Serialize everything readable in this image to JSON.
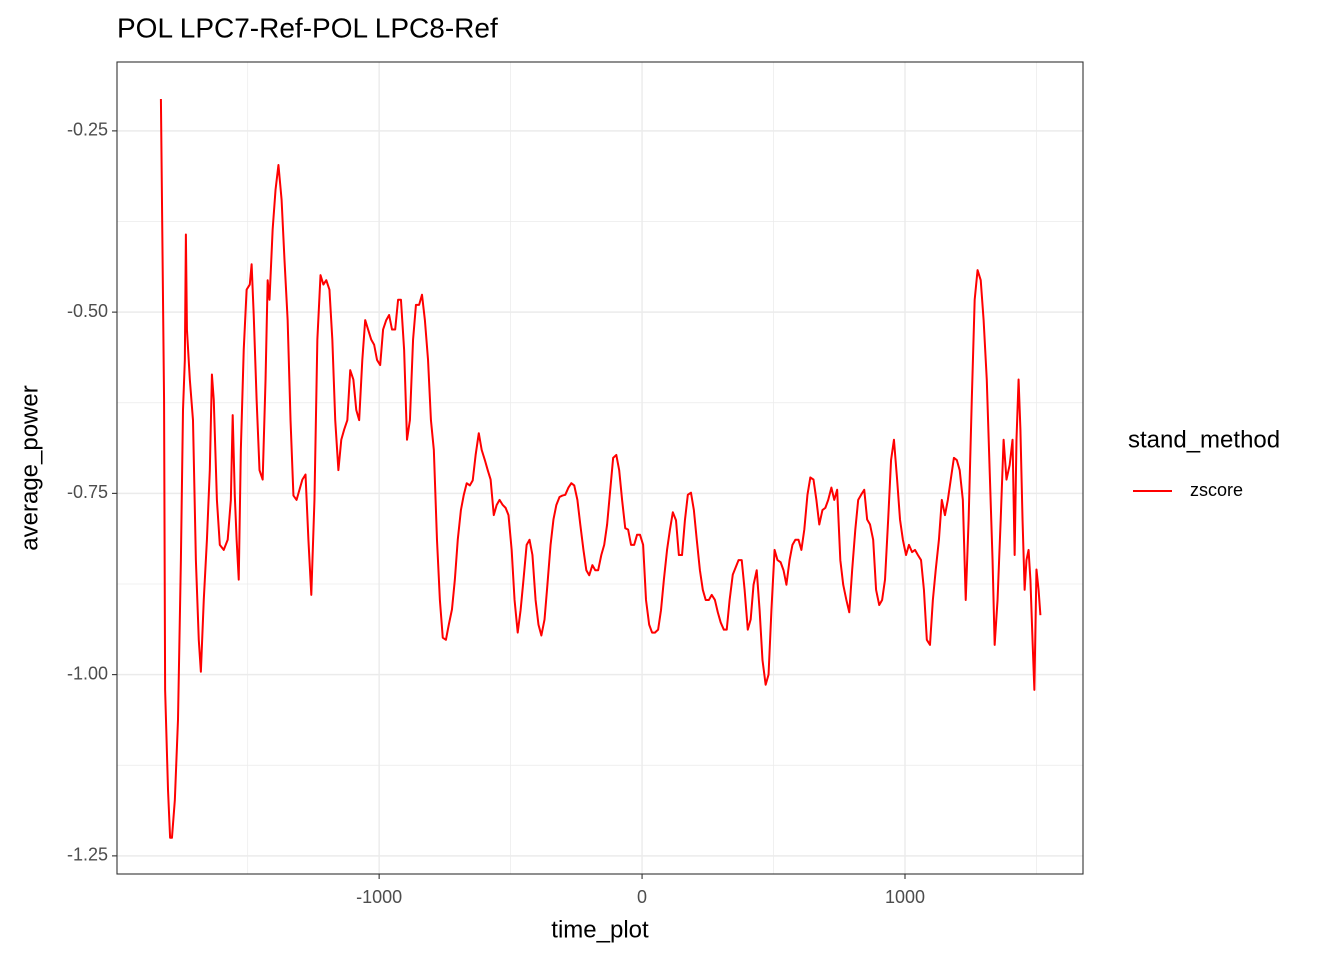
{
  "chart_data": {
    "type": "line",
    "title": "POL LPC7-Ref-POL LPC8-Ref",
    "x_label": "time_plot",
    "y_label": "average_power",
    "legend_title": "stand_method",
    "xlim": [
      -1997,
      1677
    ],
    "ylim": [
      -1.275,
      -0.155
    ],
    "xticks": [
      -1000,
      0,
      1000
    ],
    "yticks": [
      -1.25,
      {
        "value": -1.0,
        "label": "-1.00"
      },
      -0.75,
      {
        "value": -0.5,
        "label": "-0.50"
      },
      -0.25
    ],
    "xminor": [
      -1500,
      -500,
      500,
      1500
    ],
    "yminor": [
      -1.125,
      -0.875,
      -0.625,
      -0.375
    ],
    "grid": true,
    "legend": "right",
    "x": [
      -1830,
      -1818,
      -1814,
      -1803,
      -1795,
      -1788,
      -1777,
      -1765,
      -1754,
      -1746,
      -1739,
      -1735,
      -1731,
      -1720,
      -1708,
      -1697,
      -1686,
      -1678,
      -1667,
      -1655,
      -1644,
      -1636,
      -1629,
      -1617,
      -1606,
      -1591,
      -1576,
      -1564,
      -1557,
      -1549,
      -1542,
      -1534,
      -1526,
      -1515,
      -1504,
      -1492,
      -1485,
      -1477,
      -1466,
      -1455,
      -1443,
      -1432,
      -1424,
      -1417,
      -1405,
      -1394,
      -1383,
      -1371,
      -1360,
      -1348,
      -1337,
      -1326,
      -1314,
      -1303,
      -1292,
      -1280,
      -1269,
      -1258,
      -1246,
      -1235,
      -1223,
      -1212,
      -1201,
      -1189,
      -1178,
      -1167,
      -1155,
      -1144,
      -1133,
      -1121,
      -1110,
      -1098,
      -1087,
      -1076,
      -1064,
      -1053,
      -1042,
      -1030,
      -1019,
      -1008,
      -996,
      -985,
      -973,
      -962,
      -951,
      -939,
      -928,
      -917,
      -905,
      -894,
      -883,
      -871,
      -860,
      -848,
      -837,
      -826,
      -814,
      -803,
      -792,
      -780,
      -769,
      -758,
      -746,
      -735,
      -723,
      -712,
      -701,
      -689,
      -678,
      -667,
      -655,
      -644,
      -633,
      -621,
      -610,
      -598,
      -587,
      -576,
      -564,
      -553,
      -542,
      -530,
      -519,
      -508,
      -496,
      -485,
      -473,
      -462,
      -451,
      -439,
      -428,
      -417,
      -405,
      -394,
      -383,
      -371,
      -360,
      -348,
      -337,
      -326,
      -314,
      -303,
      -292,
      -280,
      -269,
      -258,
      -246,
      -235,
      -223,
      -212,
      -201,
      -189,
      -178,
      -167,
      -155,
      -144,
      -133,
      -121,
      -110,
      -98,
      -87,
      -76,
      -64,
      -53,
      -42,
      -30,
      -19,
      -8,
      4,
      15,
      27,
      38,
      49,
      61,
      72,
      83,
      95,
      106,
      117,
      129,
      140,
      152,
      163,
      174,
      186,
      197,
      208,
      220,
      231,
      242,
      254,
      265,
      277,
      288,
      299,
      311,
      322,
      333,
      345,
      356,
      367,
      379,
      390,
      402,
      413,
      424,
      436,
      447,
      458,
      470,
      481,
      492,
      504,
      515,
      527,
      538,
      549,
      561,
      572,
      583,
      595,
      606,
      617,
      629,
      640,
      652,
      663,
      674,
      686,
      697,
      708,
      720,
      731,
      742,
      754,
      765,
      777,
      788,
      799,
      811,
      822,
      833,
      845,
      856,
      867,
      879,
      890,
      902,
      913,
      924,
      936,
      947,
      958,
      970,
      981,
      992,
      1004,
      1015,
      1027,
      1038,
      1049,
      1061,
      1072,
      1083,
      1095,
      1106,
      1117,
      1129,
      1140,
      1152,
      1163,
      1174,
      1186,
      1197,
      1208,
      1220,
      1231,
      1242,
      1254,
      1265,
      1276,
      1288,
      1299,
      1311,
      1322,
      1333,
      1341,
      1352,
      1364,
      1375,
      1386,
      1398,
      1409,
      1417,
      1424,
      1432,
      1439,
      1447,
      1455,
      1462,
      1470,
      1477,
      1485,
      1492,
      1500,
      1508,
      1515
    ],
    "series": [
      {
        "name": "zscore",
        "color": "#ff0000",
        "values": [
          -0.206,
          -0.621,
          -1.021,
          -1.159,
          -1.225,
          -1.225,
          -1.173,
          -1.062,
          -0.842,
          -0.635,
          -0.566,
          -0.393,
          -0.524,
          -0.593,
          -0.649,
          -0.842,
          -0.952,
          -0.996,
          -0.897,
          -0.814,
          -0.718,
          -0.586,
          -0.621,
          -0.759,
          -0.821,
          -0.828,
          -0.814,
          -0.759,
          -0.642,
          -0.753,
          -0.814,
          -0.869,
          -0.69,
          -0.552,
          -0.469,
          -0.462,
          -0.434,
          -0.504,
          -0.621,
          -0.718,
          -0.731,
          -0.593,
          -0.456,
          -0.483,
          -0.386,
          -0.331,
          -0.297,
          -0.345,
          -0.428,
          -0.511,
          -0.649,
          -0.753,
          -0.759,
          -0.745,
          -0.731,
          -0.724,
          -0.814,
          -0.89,
          -0.759,
          -0.538,
          -0.449,
          -0.462,
          -0.456,
          -0.469,
          -0.538,
          -0.649,
          -0.718,
          -0.676,
          -0.662,
          -0.649,
          -0.58,
          -0.593,
          -0.635,
          -0.649,
          -0.566,
          -0.511,
          -0.524,
          -0.538,
          -0.545,
          -0.566,
          -0.573,
          -0.524,
          -0.511,
          -0.504,
          -0.524,
          -0.524,
          -0.483,
          -0.483,
          -0.552,
          -0.676,
          -0.649,
          -0.538,
          -0.49,
          -0.49,
          -0.476,
          -0.511,
          -0.566,
          -0.649,
          -0.69,
          -0.814,
          -0.897,
          -0.949,
          -0.952,
          -0.931,
          -0.91,
          -0.869,
          -0.814,
          -0.773,
          -0.752,
          -0.736,
          -0.739,
          -0.732,
          -0.697,
          -0.667,
          -0.69,
          -0.704,
          -0.718,
          -0.731,
          -0.78,
          -0.766,
          -0.759,
          -0.766,
          -0.77,
          -0.78,
          -0.828,
          -0.897,
          -0.942,
          -0.911,
          -0.869,
          -0.821,
          -0.814,
          -0.835,
          -0.897,
          -0.931,
          -0.946,
          -0.924,
          -0.876,
          -0.821,
          -0.786,
          -0.766,
          -0.755,
          -0.753,
          -0.752,
          -0.742,
          -0.736,
          -0.739,
          -0.759,
          -0.793,
          -0.828,
          -0.856,
          -0.863,
          -0.849,
          -0.856,
          -0.856,
          -0.835,
          -0.821,
          -0.793,
          -0.745,
          -0.701,
          -0.697,
          -0.718,
          -0.759,
          -0.798,
          -0.8,
          -0.821,
          -0.821,
          -0.807,
          -0.807,
          -0.821,
          -0.897,
          -0.931,
          -0.942,
          -0.942,
          -0.938,
          -0.911,
          -0.869,
          -0.828,
          -0.8,
          -0.776,
          -0.787,
          -0.835,
          -0.835,
          -0.787,
          -0.752,
          -0.749,
          -0.773,
          -0.814,
          -0.856,
          -0.883,
          -0.897,
          -0.897,
          -0.89,
          -0.897,
          -0.914,
          -0.928,
          -0.938,
          -0.938,
          -0.897,
          -0.862,
          -0.852,
          -0.842,
          -0.842,
          -0.883,
          -0.938,
          -0.924,
          -0.876,
          -0.856,
          -0.911,
          -0.98,
          -1.014,
          -1.0,
          -0.911,
          -0.828,
          -0.842,
          -0.845,
          -0.856,
          -0.876,
          -0.842,
          -0.821,
          -0.814,
          -0.814,
          -0.828,
          -0.8,
          -0.752,
          -0.728,
          -0.731,
          -0.759,
          -0.793,
          -0.773,
          -0.77,
          -0.759,
          -0.742,
          -0.759,
          -0.745,
          -0.842,
          -0.876,
          -0.897,
          -0.914,
          -0.856,
          -0.8,
          -0.759,
          -0.752,
          -0.745,
          -0.786,
          -0.793,
          -0.814,
          -0.883,
          -0.904,
          -0.897,
          -0.869,
          -0.786,
          -0.704,
          -0.676,
          -0.731,
          -0.786,
          -0.814,
          -0.835,
          -0.821,
          -0.831,
          -0.828,
          -0.835,
          -0.842,
          -0.883,
          -0.952,
          -0.959,
          -0.897,
          -0.855,
          -0.814,
          -0.759,
          -0.78,
          -0.759,
          -0.731,
          -0.701,
          -0.704,
          -0.718,
          -0.759,
          -0.897,
          -0.786,
          -0.621,
          -0.483,
          -0.442,
          -0.456,
          -0.511,
          -0.593,
          -0.718,
          -0.842,
          -0.959,
          -0.897,
          -0.786,
          -0.676,
          -0.731,
          -0.711,
          -0.676,
          -0.835,
          -0.676,
          -0.593,
          -0.662,
          -0.786,
          -0.883,
          -0.842,
          -0.828,
          -0.869,
          -0.952,
          -1.021,
          -0.855,
          -0.883,
          -0.918
        ]
      }
    ]
  }
}
